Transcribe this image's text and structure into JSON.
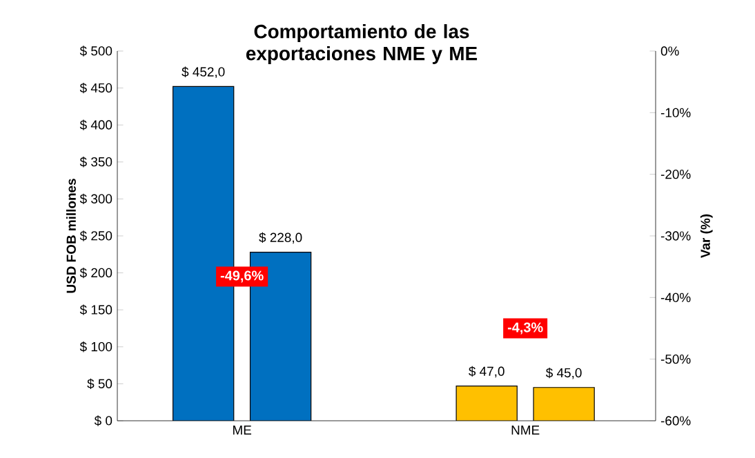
{
  "chart_data": {
    "type": "bar",
    "title": "Comportamiento de las exportaciones NME y ME",
    "ylabel": "USD FOB millones",
    "y2label": "Var (%)",
    "categories": [
      "ME",
      "NME"
    ],
    "series": [
      {
        "colors": [
          "#0070c0",
          "#ffc000"
        ],
        "values": [
          452,
          47
        ],
        "value_labels": [
          "$ 452,0",
          "$ 47,0"
        ]
      },
      {
        "colors": [
          "#0070c0",
          "#ffc000"
        ],
        "values": [
          228,
          45
        ],
        "value_labels": [
          "$ 228,0",
          "$ 45,0"
        ]
      }
    ],
    "ylim": [
      0,
      500
    ],
    "yticks": [
      {
        "value": 0,
        "label": "$ 0"
      },
      {
        "value": 50,
        "label": "$ 50"
      },
      {
        "value": 100,
        "label": "$ 100"
      },
      {
        "value": 150,
        "label": "$ 150"
      },
      {
        "value": 200,
        "label": "$ 200"
      },
      {
        "value": 250,
        "label": "$ 250"
      },
      {
        "value": 300,
        "label": "$ 300"
      },
      {
        "value": 350,
        "label": "$ 350"
      },
      {
        "value": 400,
        "label": "$ 400"
      },
      {
        "value": 450,
        "label": "$ 450"
      },
      {
        "value": 500,
        "label": "$ 500"
      }
    ],
    "y2lim": [
      -60,
      0
    ],
    "y2ticks": [
      {
        "value": 0,
        "label": "0%"
      },
      {
        "value": -10,
        "label": "-10%"
      },
      {
        "value": -20,
        "label": "-20%"
      },
      {
        "value": -30,
        "label": "-30%"
      },
      {
        "value": -40,
        "label": "-40%"
      },
      {
        "value": -50,
        "label": "-50%"
      },
      {
        "value": -60,
        "label": "-60%"
      }
    ],
    "annotations": [
      "-49,6%",
      "-4,3%"
    ],
    "grid": false
  }
}
